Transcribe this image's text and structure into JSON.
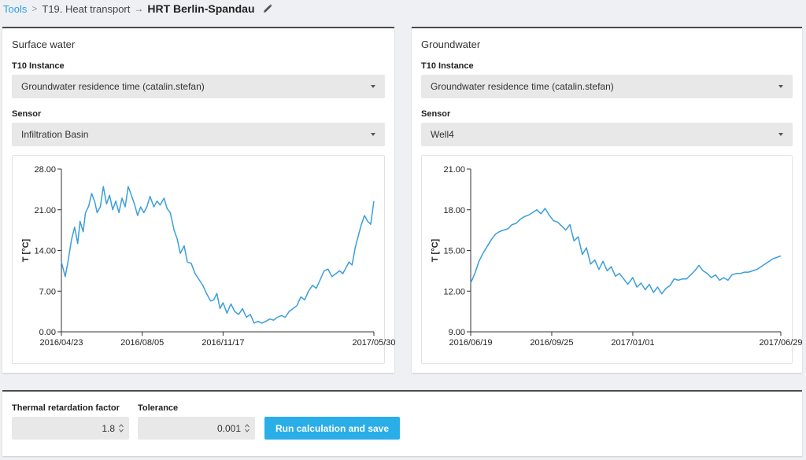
{
  "breadcrumb": {
    "tools": "Tools",
    "tool": "T19. Heat transport",
    "title": "HRT Berlin-Spandau",
    "edit_icon": "pencil-icon"
  },
  "surface": {
    "title": "Surface water",
    "instance_label": "T10 Instance",
    "instance_value": "Groundwater residence time (catalin.stefan)",
    "sensor_label": "Sensor",
    "sensor_value": "Infiltration Basin"
  },
  "ground": {
    "title": "Groundwater",
    "instance_label": "T10 Instance",
    "instance_value": "Groundwater residence time (catalin.stefan)",
    "sensor_label": "Sensor",
    "sensor_value": "Well4"
  },
  "controls": {
    "retardation_label": "Thermal retardation factor",
    "retardation_value": "1.8",
    "tolerance_label": "Tolerance",
    "tolerance_value": "0.001",
    "run_label": "Run calculation and save"
  },
  "colors": {
    "accent": "#2aaee8",
    "line": "#3a9edb",
    "link": "#2e9fe0"
  },
  "chart_data": [
    {
      "type": "line",
      "ylabel": "T [°C]",
      "xlabel": "",
      "ylim": [
        0,
        28
      ],
      "yticks": [
        "0.00",
        "7.00",
        "14.00",
        "21.00",
        "28.00"
      ],
      "xlim": [
        "2016-04-23",
        "2017-05-30"
      ],
      "xticks": [
        "2016/04/23",
        "2016/08/05",
        "2016/11/17",
        "2017/05/30"
      ],
      "series": [
        {
          "x": [
            "2016-04-23",
            "2016-04-28",
            "2016-05-02",
            "2016-05-06",
            "2016-05-10",
            "2016-05-14",
            "2016-05-17",
            "2016-05-21",
            "2016-05-24",
            "2016-05-28",
            "2016-06-01",
            "2016-06-05",
            "2016-06-08",
            "2016-06-12",
            "2016-06-16",
            "2016-06-20",
            "2016-06-24",
            "2016-06-28",
            "2016-07-02",
            "2016-07-06",
            "2016-07-10",
            "2016-07-14",
            "2016-07-18",
            "2016-07-22",
            "2016-07-26",
            "2016-07-30",
            "2016-08-03",
            "2016-08-07",
            "2016-08-11",
            "2016-08-15",
            "2016-08-20",
            "2016-08-24",
            "2016-08-28",
            "2016-09-02",
            "2016-09-06",
            "2016-09-10",
            "2016-09-15",
            "2016-09-19",
            "2016-09-23",
            "2016-09-28",
            "2016-10-02",
            "2016-10-07",
            "2016-10-12",
            "2016-10-17",
            "2016-10-22",
            "2016-10-27",
            "2016-11-01",
            "2016-11-05",
            "2016-11-09",
            "2016-11-13",
            "2016-11-17",
            "2016-11-22",
            "2016-11-27",
            "2016-12-02",
            "2016-12-07",
            "2016-12-12",
            "2016-12-17",
            "2016-12-22",
            "2016-12-27",
            "2017-01-01",
            "2017-01-06",
            "2017-01-11",
            "2017-01-16",
            "2017-01-21",
            "2017-01-26",
            "2017-01-31",
            "2017-02-05",
            "2017-02-10",
            "2017-02-15",
            "2017-02-20",
            "2017-02-25",
            "2017-03-02",
            "2017-03-07",
            "2017-03-12",
            "2017-03-17",
            "2017-03-22",
            "2017-03-27",
            "2017-04-01",
            "2017-04-06",
            "2017-04-11",
            "2017-04-16",
            "2017-04-20",
            "2017-04-24",
            "2017-04-28",
            "2017-05-02",
            "2017-05-06",
            "2017-05-10",
            "2017-05-14",
            "2017-05-18",
            "2017-05-22",
            "2017-05-26",
            "2017-05-30"
          ],
          "y": [
            12.0,
            9.5,
            12.5,
            15.8,
            18.0,
            15.2,
            19.0,
            17.2,
            20.5,
            21.6,
            23.8,
            22.3,
            20.5,
            21.5,
            25.0,
            22.0,
            23.5,
            21.0,
            22.5,
            20.5,
            23.0,
            21.5,
            25.0,
            23.5,
            22.0,
            20.0,
            21.5,
            20.5,
            21.5,
            23.3,
            21.5,
            22.5,
            21.8,
            23.0,
            21.2,
            20.5,
            17.5,
            16.0,
            13.5,
            14.8,
            12.0,
            11.8,
            10.0,
            9.0,
            8.0,
            6.5,
            5.3,
            5.5,
            6.6,
            4.0,
            5.0,
            3.2,
            4.8,
            3.5,
            3.0,
            4.0,
            2.5,
            3.0,
            1.5,
            1.8,
            1.5,
            1.8,
            2.2,
            2.0,
            2.5,
            2.8,
            2.5,
            3.5,
            4.0,
            4.5,
            6.0,
            5.5,
            7.0,
            8.0,
            7.5,
            9.0,
            10.5,
            10.8,
            9.5,
            10.0,
            10.5,
            10.0,
            11.0,
            12.0,
            11.5,
            14.5,
            16.5,
            18.5,
            20.0,
            19.0,
            18.5,
            22.5
          ]
        }
      ]
    },
    {
      "type": "line",
      "ylabel": "T [°C]",
      "xlabel": "",
      "ylim": [
        9,
        21
      ],
      "yticks": [
        "9.00",
        "12.00",
        "15.00",
        "18.00",
        "21.00"
      ],
      "xlim": [
        "2016-06-19",
        "2017-06-29"
      ],
      "xticks": [
        "2016/06/19",
        "2016/09/25",
        "2017/01/01",
        "2017/06/29"
      ],
      "series": [
        {
          "x": [
            "2016-06-19",
            "2016-06-24",
            "2016-06-29",
            "2016-07-04",
            "2016-07-09",
            "2016-07-14",
            "2016-07-19",
            "2016-07-24",
            "2016-07-29",
            "2016-08-03",
            "2016-08-08",
            "2016-08-13",
            "2016-08-18",
            "2016-08-23",
            "2016-08-28",
            "2016-09-02",
            "2016-09-07",
            "2016-09-12",
            "2016-09-17",
            "2016-09-22",
            "2016-09-27",
            "2016-10-02",
            "2016-10-07",
            "2016-10-12",
            "2016-10-17",
            "2016-10-22",
            "2016-10-27",
            "2016-11-01",
            "2016-11-06",
            "2016-11-11",
            "2016-11-16",
            "2016-11-21",
            "2016-11-26",
            "2016-12-01",
            "2016-12-06",
            "2016-12-11",
            "2016-12-16",
            "2016-12-21",
            "2016-12-26",
            "2017-01-01",
            "2017-01-06",
            "2017-01-11",
            "2017-01-16",
            "2017-01-21",
            "2017-01-26",
            "2017-01-31",
            "2017-02-05",
            "2017-02-10",
            "2017-02-15",
            "2017-02-20",
            "2017-02-25",
            "2017-03-02",
            "2017-03-07",
            "2017-03-12",
            "2017-03-17",
            "2017-03-22",
            "2017-03-27",
            "2017-04-01",
            "2017-04-06",
            "2017-04-11",
            "2017-04-16",
            "2017-04-21",
            "2017-04-26",
            "2017-05-01",
            "2017-05-06",
            "2017-05-11",
            "2017-05-16",
            "2017-05-21",
            "2017-05-26",
            "2017-05-31",
            "2017-06-05",
            "2017-06-10",
            "2017-06-15",
            "2017-06-20",
            "2017-06-25",
            "2017-06-29"
          ],
          "y": [
            12.6,
            13.3,
            14.2,
            14.8,
            15.3,
            15.8,
            16.2,
            16.4,
            16.5,
            16.6,
            16.9,
            17.0,
            17.3,
            17.5,
            17.6,
            17.8,
            18.0,
            17.7,
            18.1,
            17.6,
            17.2,
            17.1,
            16.8,
            16.5,
            16.9,
            15.7,
            16.0,
            14.7,
            15.2,
            14.0,
            14.3,
            13.6,
            14.2,
            13.5,
            13.8,
            13.1,
            13.3,
            12.9,
            12.5,
            13.0,
            12.3,
            12.6,
            12.1,
            12.5,
            11.9,
            12.3,
            11.8,
            12.2,
            12.4,
            12.9,
            12.8,
            12.9,
            12.9,
            13.2,
            13.5,
            13.9,
            13.5,
            13.3,
            13.0,
            13.2,
            12.8,
            13.0,
            12.8,
            13.2,
            13.3,
            13.3,
            13.4,
            13.4,
            13.5,
            13.6,
            13.8,
            14.0,
            14.2,
            14.4,
            14.5,
            14.6
          ]
        }
      ]
    }
  ]
}
